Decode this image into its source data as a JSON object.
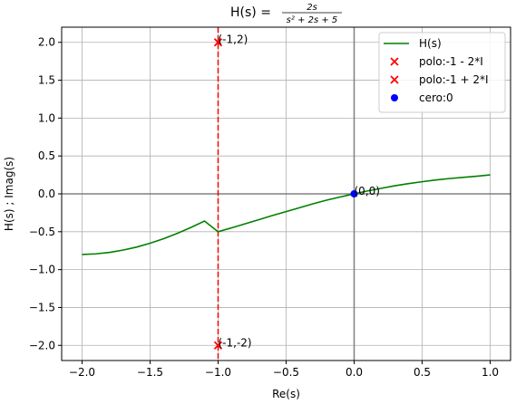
{
  "chart_data": {
    "type": "line",
    "title": {
      "prefix": "H(s) = ",
      "numerator": "2s",
      "denominator": "s² + 2s + 5"
    },
    "xlabel": "Re(s)",
    "ylabel": "H(s) ; Imag(s)",
    "xlim": [
      -2.15,
      1.15
    ],
    "ylim": [
      -2.2,
      2.2
    ],
    "xticks": [
      -2.0,
      -1.5,
      -1.0,
      -0.5,
      0.0,
      0.5,
      1.0
    ],
    "xtick_labels": [
      "−2.0",
      "−1.5",
      "−1.0",
      "−0.5",
      "0.0",
      "0.5",
      "1.0"
    ],
    "yticks": [
      -2.0,
      -1.5,
      -1.0,
      -0.5,
      0.0,
      0.5,
      1.0,
      1.5,
      2.0
    ],
    "ytick_labels": [
      "−2.0",
      "−1.5",
      "−1.0",
      "−0.5",
      "0.0",
      "0.5",
      "1.0",
      "1.5",
      "2.0"
    ],
    "grid": true,
    "legend_position": "top-right",
    "series": [
      {
        "name": "H(s)",
        "kind": "line",
        "color": "#008000",
        "x": [
          -2.0,
          -1.9,
          -1.8,
          -1.7,
          -1.6,
          -1.5,
          -1.4,
          -1.3,
          -1.2,
          -1.1,
          -1.0,
          -0.9,
          -0.8,
          -0.7,
          -0.6,
          -0.5,
          -0.4,
          -0.3,
          -0.2,
          -0.1,
          0.0,
          0.1,
          0.2,
          0.3,
          0.4,
          0.5,
          0.6,
          0.7,
          0.8,
          0.9,
          1.0
        ],
        "y": [
          -0.8,
          -0.792,
          -0.773,
          -0.743,
          -0.703,
          -0.652,
          -0.592,
          -0.522,
          -0.444,
          -0.359,
          -0.5,
          -0.448,
          -0.395,
          -0.341,
          -0.286,
          -0.235,
          -0.182,
          -0.13,
          -0.082,
          -0.04,
          0.0,
          0.039,
          0.073,
          0.107,
          0.135,
          0.16,
          0.183,
          0.202,
          0.217,
          0.232,
          0.25
        ]
      },
      {
        "name": "polo:-1 - 2*I",
        "kind": "marker-x",
        "color": "#ff0000",
        "x": [
          -1.0
        ],
        "y": [
          -2.0
        ]
      },
      {
        "name": "polo:-1 + 2*I",
        "kind": "marker-x",
        "color": "#ff0000",
        "x": [
          -1.0
        ],
        "y": [
          2.0
        ]
      },
      {
        "name": "cero:0",
        "kind": "marker-dot",
        "color": "#0000ff",
        "x": [
          0.0
        ],
        "y": [
          0.0
        ]
      }
    ],
    "vline": {
      "x": -1.0,
      "color": "#ff0000",
      "style": "dashed"
    },
    "axis_lines": {
      "color": "#808080"
    },
    "annotations": [
      {
        "text": "(-1,2)",
        "x": -1.0,
        "y": 2.0
      },
      {
        "text": "(-1,-2)",
        "x": -1.0,
        "y": -2.0
      },
      {
        "text": "(0,0)",
        "x": 0.0,
        "y": 0.0
      }
    ]
  }
}
